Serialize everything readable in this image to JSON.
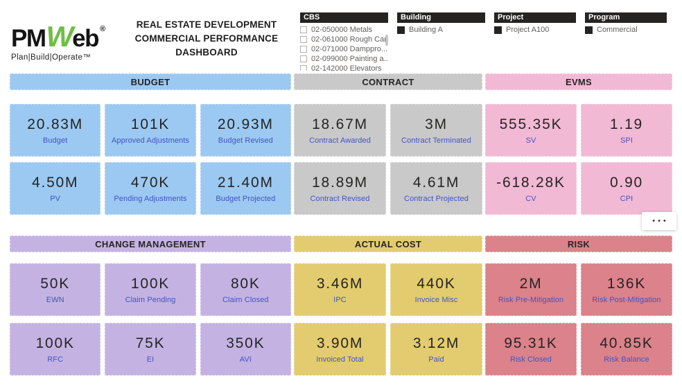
{
  "logo": {
    "part1": "PM",
    "part2": "W",
    "part3": "eb",
    "registered": "®",
    "tagline": "Plan|Build|Operate™"
  },
  "title": {
    "lines": [
      "REAL ESTATE DEVELOPMENT",
      "COMMERCIAL PERFORMANCE",
      "DASHBOARD"
    ]
  },
  "slicers": [
    {
      "name": "CBS",
      "has_scrollbar": true,
      "clipped": true,
      "items": [
        {
          "label": "02-050000 Metals",
          "checked": false
        },
        {
          "label": "02-061000 Rough Car...",
          "checked": false
        },
        {
          "label": "02-071000 Damppro...",
          "checked": false
        },
        {
          "label": "02-099000 Painting a...",
          "checked": false
        },
        {
          "label": "02-142000 Elevators",
          "checked": false
        }
      ]
    },
    {
      "name": "Building",
      "has_scrollbar": false,
      "clipped": false,
      "items": [
        {
          "label": "Building A",
          "checked": true
        }
      ]
    },
    {
      "name": "Project",
      "has_scrollbar": false,
      "clipped": false,
      "items": [
        {
          "label": "Project A100",
          "checked": true
        }
      ]
    },
    {
      "name": "Program",
      "has_scrollbar": false,
      "clipped": false,
      "items": [
        {
          "label": "Commercial",
          "checked": true
        }
      ]
    }
  ],
  "sections": [
    {
      "title": "BUDGET",
      "group": "top",
      "color": "#9CC9F1",
      "columns": 3,
      "cards": [
        {
          "value": "20.83M",
          "label": "Budget"
        },
        {
          "value": "101K",
          "label": "Approved Adjustments"
        },
        {
          "value": "20.93M",
          "label": "Budget Revised"
        },
        {
          "value": "4.50M",
          "label": "PV"
        },
        {
          "value": "470K",
          "label": "Pending Adjustments"
        },
        {
          "value": "21.40M",
          "label": "Budget Projected"
        }
      ]
    },
    {
      "title": "CONTRACT",
      "group": "top",
      "color": "#C9C9C9",
      "columns": 2,
      "cards": [
        {
          "value": "18.67M",
          "label": "Contract Awarded"
        },
        {
          "value": "3M",
          "label": "Contract Terminated"
        },
        {
          "value": "18.89M",
          "label": "Contract Revised"
        },
        {
          "value": "4.61M",
          "label": "Contract Projected"
        }
      ]
    },
    {
      "title": "EVMS",
      "group": "top",
      "color": "#F2B9D5",
      "columns": 2,
      "cards": [
        {
          "value": "555.35K",
          "label": "SV"
        },
        {
          "value": "1.19",
          "label": "SPI"
        },
        {
          "value": "-618.28K",
          "label": "CV"
        },
        {
          "value": "0.90",
          "label": "CPI"
        }
      ]
    },
    {
      "title": "CHANGE MANAGEMENT",
      "group": "bottom",
      "color": "#C4B3E2",
      "columns": 3,
      "cards": [
        {
          "value": "50K",
          "label": "EWN"
        },
        {
          "value": "100K",
          "label": "Claim Pending"
        },
        {
          "value": "80K",
          "label": "Claim Closed"
        },
        {
          "value": "100K",
          "label": "RFC"
        },
        {
          "value": "75K",
          "label": "EI"
        },
        {
          "value": "350K",
          "label": "AVI"
        }
      ]
    },
    {
      "title": "ACTUAL COST",
      "group": "bottom",
      "color": "#E3CC6F",
      "columns": 2,
      "cards": [
        {
          "value": "3.46M",
          "label": "IPC"
        },
        {
          "value": "440K",
          "label": "Invoice Misc"
        },
        {
          "value": "3.90M",
          "label": "Invoiced Total"
        },
        {
          "value": "3.12M",
          "label": "Paid"
        }
      ]
    },
    {
      "title": "RISK",
      "group": "bottom",
      "color": "#DB828B",
      "columns": 2,
      "cards": [
        {
          "value": "2M",
          "label": "Risk Pre-Mitigation"
        },
        {
          "value": "136K",
          "label": "Risk Post-Mitigation"
        },
        {
          "value": "95.31K",
          "label": "Risk Closed"
        },
        {
          "value": "40.85K",
          "label": "Risk Balance"
        }
      ]
    }
  ],
  "more_options": {
    "label": "•••"
  },
  "colors": {
    "value_text": "#252423",
    "label_text": "#4152C5",
    "slicer_text": "#605E5C",
    "slicer_header_bg": "#252423",
    "logo_green": "#6FBE44"
  }
}
